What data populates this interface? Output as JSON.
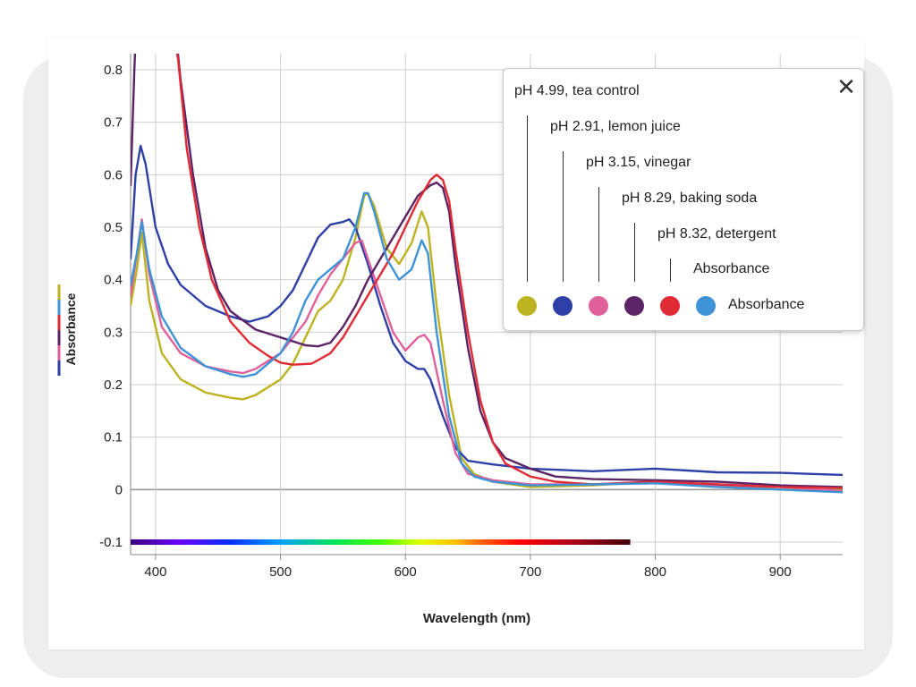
{
  "chart_data": {
    "type": "line",
    "xlabel": "Wavelength (nm)",
    "ylabel": "Absorbance",
    "xlim": [
      380,
      950
    ],
    "ylim": [
      -0.12,
      0.8
    ],
    "x_ticks": [
      400,
      500,
      600,
      700,
      800,
      900
    ],
    "x_tick_labels": [
      "400",
      "500",
      "600",
      "700",
      "800",
      "900"
    ],
    "y_ticks": [
      0.8,
      0.7,
      0.6,
      0.5,
      0.4,
      0.3,
      0.2,
      0.1,
      0,
      -0.1
    ],
    "y_tick_labels": [
      "0.8",
      "0.7",
      "0.6",
      "0.5",
      "0.4",
      "0.3",
      "0.2",
      "0.1",
      "0",
      "-0.1"
    ],
    "grid": true,
    "legend_position": "top-right",
    "spectrum_bar": {
      "range": [
        380,
        780
      ],
      "y": -0.1
    },
    "series": [
      {
        "name": "pH 4.99, tea control",
        "color": "#bdb321",
        "points": [
          [
            380,
            0.35
          ],
          [
            385,
            0.42
          ],
          [
            389,
            0.49
          ],
          [
            395,
            0.36
          ],
          [
            405,
            0.26
          ],
          [
            420,
            0.21
          ],
          [
            440,
            0.185
          ],
          [
            460,
            0.175
          ],
          [
            470,
            0.172
          ],
          [
            480,
            0.18
          ],
          [
            500,
            0.21
          ],
          [
            510,
            0.24
          ],
          [
            520,
            0.29
          ],
          [
            530,
            0.34
          ],
          [
            540,
            0.36
          ],
          [
            550,
            0.4
          ],
          [
            560,
            0.48
          ],
          [
            567,
            0.56
          ],
          [
            570,
            0.565
          ],
          [
            575,
            0.54
          ],
          [
            585,
            0.46
          ],
          [
            595,
            0.43
          ],
          [
            605,
            0.47
          ],
          [
            613,
            0.53
          ],
          [
            618,
            0.5
          ],
          [
            625,
            0.35
          ],
          [
            635,
            0.18
          ],
          [
            645,
            0.06
          ],
          [
            655,
            0.03
          ],
          [
            670,
            0.015
          ],
          [
            700,
            0.005
          ],
          [
            750,
            0.008
          ],
          [
            800,
            0.015
          ],
          [
            850,
            0.01
          ],
          [
            900,
            0.0
          ],
          [
            950,
            -0.002
          ]
        ]
      },
      {
        "name": "pH 2.91, lemon juice",
        "color": "#2e3fa8",
        "points": [
          [
            380,
            0.44
          ],
          [
            384,
            0.6
          ],
          [
            388,
            0.655
          ],
          [
            392,
            0.62
          ],
          [
            400,
            0.5
          ],
          [
            410,
            0.43
          ],
          [
            420,
            0.39
          ],
          [
            440,
            0.35
          ],
          [
            460,
            0.33
          ],
          [
            475,
            0.32
          ],
          [
            490,
            0.33
          ],
          [
            500,
            0.35
          ],
          [
            510,
            0.38
          ],
          [
            520,
            0.43
          ],
          [
            530,
            0.48
          ],
          [
            540,
            0.505
          ],
          [
            550,
            0.51
          ],
          [
            555,
            0.515
          ],
          [
            560,
            0.5
          ],
          [
            570,
            0.43
          ],
          [
            580,
            0.35
          ],
          [
            590,
            0.28
          ],
          [
            600,
            0.245
          ],
          [
            610,
            0.23
          ],
          [
            615,
            0.23
          ],
          [
            620,
            0.21
          ],
          [
            630,
            0.14
          ],
          [
            640,
            0.08
          ],
          [
            650,
            0.055
          ],
          [
            670,
            0.048
          ],
          [
            700,
            0.04
          ],
          [
            750,
            0.035
          ],
          [
            800,
            0.04
          ],
          [
            850,
            0.033
          ],
          [
            900,
            0.032
          ],
          [
            950,
            0.028
          ]
        ]
      },
      {
        "name": "pH 3.15, vinegar",
        "color": "#e0609a",
        "points": [
          [
            380,
            0.37
          ],
          [
            385,
            0.45
          ],
          [
            389,
            0.515
          ],
          [
            395,
            0.41
          ],
          [
            405,
            0.31
          ],
          [
            420,
            0.26
          ],
          [
            440,
            0.235
          ],
          [
            460,
            0.225
          ],
          [
            470,
            0.222
          ],
          [
            480,
            0.23
          ],
          [
            500,
            0.26
          ],
          [
            520,
            0.32
          ],
          [
            530,
            0.37
          ],
          [
            540,
            0.41
          ],
          [
            550,
            0.44
          ],
          [
            560,
            0.47
          ],
          [
            565,
            0.475
          ],
          [
            570,
            0.44
          ],
          [
            580,
            0.37
          ],
          [
            590,
            0.3
          ],
          [
            600,
            0.265
          ],
          [
            610,
            0.29
          ],
          [
            615,
            0.295
          ],
          [
            620,
            0.28
          ],
          [
            630,
            0.17
          ],
          [
            640,
            0.07
          ],
          [
            650,
            0.03
          ],
          [
            670,
            0.018
          ],
          [
            700,
            0.01
          ],
          [
            750,
            0.01
          ],
          [
            800,
            0.015
          ],
          [
            850,
            0.008
          ],
          [
            900,
            0.005
          ],
          [
            950,
            -0.003
          ]
        ]
      },
      {
        "name": "pH 8.29, baking soda",
        "color": "#5b2466",
        "points": [
          [
            380,
            0.58
          ],
          [
            383,
            0.8
          ],
          [
            383.5,
            0.83
          ],
          [
            395,
            0.9
          ],
          [
            415,
            0.9
          ],
          [
            420,
            0.78
          ],
          [
            430,
            0.6
          ],
          [
            440,
            0.46
          ],
          [
            450,
            0.38
          ],
          [
            460,
            0.34
          ],
          [
            480,
            0.305
          ],
          [
            500,
            0.29
          ],
          [
            520,
            0.275
          ],
          [
            530,
            0.273
          ],
          [
            540,
            0.28
          ],
          [
            550,
            0.31
          ],
          [
            560,
            0.35
          ],
          [
            570,
            0.4
          ],
          [
            580,
            0.44
          ],
          [
            590,
            0.48
          ],
          [
            600,
            0.52
          ],
          [
            610,
            0.56
          ],
          [
            620,
            0.58
          ],
          [
            625,
            0.585
          ],
          [
            630,
            0.575
          ],
          [
            635,
            0.53
          ],
          [
            640,
            0.43
          ],
          [
            650,
            0.27
          ],
          [
            660,
            0.15
          ],
          [
            670,
            0.09
          ],
          [
            680,
            0.06
          ],
          [
            700,
            0.04
          ],
          [
            720,
            0.025
          ],
          [
            750,
            0.02
          ],
          [
            800,
            0.018
          ],
          [
            850,
            0.015
          ],
          [
            900,
            0.008
          ],
          [
            950,
            0.005
          ]
        ]
      },
      {
        "name": "pH 8.32, detergent",
        "color": "#e02a35",
        "points": [
          [
            412,
            0.9
          ],
          [
            418,
            0.82
          ],
          [
            425,
            0.65
          ],
          [
            435,
            0.5
          ],
          [
            445,
            0.4
          ],
          [
            460,
            0.32
          ],
          [
            475,
            0.28
          ],
          [
            490,
            0.255
          ],
          [
            500,
            0.242
          ],
          [
            510,
            0.238
          ],
          [
            525,
            0.24
          ],
          [
            540,
            0.26
          ],
          [
            550,
            0.29
          ],
          [
            560,
            0.33
          ],
          [
            570,
            0.37
          ],
          [
            580,
            0.41
          ],
          [
            590,
            0.45
          ],
          [
            600,
            0.5
          ],
          [
            610,
            0.55
          ],
          [
            620,
            0.59
          ],
          [
            625,
            0.6
          ],
          [
            630,
            0.59
          ],
          [
            635,
            0.55
          ],
          [
            640,
            0.46
          ],
          [
            650,
            0.3
          ],
          [
            660,
            0.17
          ],
          [
            670,
            0.09
          ],
          [
            680,
            0.05
          ],
          [
            700,
            0.025
          ],
          [
            720,
            0.015
          ],
          [
            750,
            0.01
          ],
          [
            800,
            0.015
          ],
          [
            850,
            0.01
          ],
          [
            900,
            0.005
          ],
          [
            950,
            0.003
          ]
        ]
      },
      {
        "name": "Absorbance",
        "color": "#3d93d6",
        "points": [
          [
            380,
            0.39
          ],
          [
            385,
            0.45
          ],
          [
            389,
            0.51
          ],
          [
            395,
            0.42
          ],
          [
            405,
            0.33
          ],
          [
            420,
            0.27
          ],
          [
            440,
            0.235
          ],
          [
            460,
            0.22
          ],
          [
            470,
            0.215
          ],
          [
            480,
            0.22
          ],
          [
            500,
            0.26
          ],
          [
            510,
            0.3
          ],
          [
            520,
            0.36
          ],
          [
            530,
            0.4
          ],
          [
            540,
            0.42
          ],
          [
            550,
            0.44
          ],
          [
            560,
            0.5
          ],
          [
            567,
            0.565
          ],
          [
            570,
            0.565
          ],
          [
            575,
            0.53
          ],
          [
            585,
            0.44
          ],
          [
            595,
            0.4
          ],
          [
            605,
            0.42
          ],
          [
            613,
            0.475
          ],
          [
            618,
            0.45
          ],
          [
            625,
            0.3
          ],
          [
            635,
            0.14
          ],
          [
            645,
            0.05
          ],
          [
            655,
            0.025
          ],
          [
            670,
            0.015
          ],
          [
            700,
            0.008
          ],
          [
            750,
            0.01
          ],
          [
            800,
            0.012
          ],
          [
            850,
            0.005
          ],
          [
            900,
            0.0
          ],
          [
            950,
            -0.005
          ]
        ]
      }
    ]
  },
  "legend": {
    "close_glyph": "✕",
    "absorbance_label": "Absorbance"
  }
}
